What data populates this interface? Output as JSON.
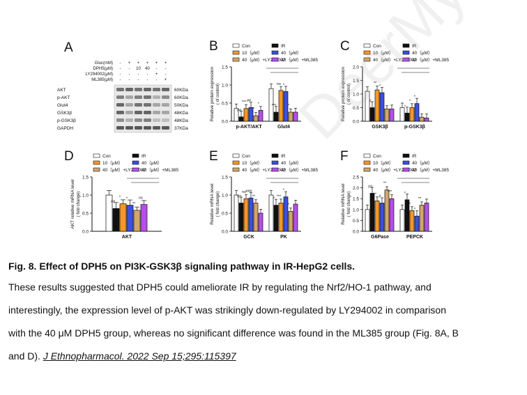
{
  "panels": {
    "A": "A",
    "B": "B",
    "C": "C",
    "D": "D",
    "E": "E",
    "F": "F"
  },
  "watermark": "DeerMy",
  "legend": {
    "con": "Con",
    "ir": "IR",
    "d10": "10（μM）",
    "d40": "40（μM）",
    "ly": "40（μM）+LY294002",
    "ml": "40（μM）+ML385"
  },
  "colors": {
    "con": "#ffffff",
    "ir": "#111111",
    "d10": "#f7962a",
    "d40": "#3b4fe0",
    "ly": "#d4a56a",
    "ml": "#b64fe8"
  },
  "blot": {
    "treatment_rows": [
      {
        "label": "Gluc(mM)",
        "values": [
          "-",
          "+",
          "+",
          "+",
          "+",
          "+"
        ]
      },
      {
        "label": "DPH5(μM)",
        "values": [
          "-",
          "-",
          "10",
          "40",
          "-",
          "-"
        ]
      },
      {
        "label": "LY294002(μM)",
        "values": [
          "-",
          "-",
          "-",
          "-",
          "+",
          "-"
        ]
      },
      {
        "label": "ML385(μM)",
        "values": [
          "-",
          "-",
          "-",
          "-",
          "-",
          "+"
        ]
      }
    ],
    "bands": [
      {
        "name": "AKT",
        "kda": "60KDa"
      },
      {
        "name": "p-AKT",
        "kda": "60KDa"
      },
      {
        "name": "Glut4",
        "kda": "50KDa"
      },
      {
        "name": "GSK3β",
        "kda": "48KDa"
      },
      {
        "name": "p-GSK3β",
        "kda": "48KDa"
      },
      {
        "name": "GAPDH",
        "kda": "37KDa"
      }
    ]
  },
  "chart_data": [
    {
      "id": "B",
      "type": "bar",
      "ylabel": "Relative protein expression",
      "ylabel2": "( of control)",
      "categories": [
        "p-AKT/AKT",
        "Glut4"
      ],
      "ylim": [
        0,
        1.5
      ],
      "yticks": [
        "0.0",
        "0.5",
        "1.0",
        "1.5"
      ],
      "series": [
        {
          "name": "Con",
          "values": [
            0.35,
            0.9
          ]
        },
        {
          "name": "IR",
          "values": [
            0.12,
            0.25
          ]
        },
        {
          "name": "10（μM）",
          "values": [
            0.35,
            0.85
          ]
        },
        {
          "name": "40（μM）",
          "values": [
            0.38,
            0.82
          ]
        },
        {
          "name": "40（μM）+LY294002",
          "values": [
            0.15,
            0.25
          ]
        },
        {
          "name": "40（μM）+ML385",
          "values": [
            0.3,
            0.25
          ]
        }
      ],
      "annotations": [
        "##",
        "***",
        "***",
        "ns",
        "##",
        "*",
        "*",
        "*",
        "*"
      ]
    },
    {
      "id": "C",
      "type": "bar",
      "ylabel": "Relative protein expression",
      "ylabel2": "( of control)",
      "categories": [
        "GSK3β",
        "p-GSK3β"
      ],
      "ylim": [
        0,
        2.0
      ],
      "yticks": [
        "0.0",
        "0.5",
        "1.0",
        "1.5",
        "2.0"
      ],
      "series": [
        {
          "name": "Con",
          "values": [
            1.1,
            0.5
          ]
        },
        {
          "name": "IR",
          "values": [
            0.5,
            0.3
          ]
        },
        {
          "name": "10（μM）",
          "values": [
            1.15,
            0.5
          ]
        },
        {
          "name": "40（μM）",
          "values": [
            1.05,
            0.65
          ]
        },
        {
          "name": "40（μM）+LY294002",
          "values": [
            0.45,
            0.15
          ]
        },
        {
          "name": "40（μM）+ML385",
          "values": [
            0.45,
            0.12
          ]
        }
      ],
      "annotations": [
        "#",
        "*",
        "**",
        "*",
        "*",
        "*"
      ]
    },
    {
      "id": "D",
      "type": "bar",
      "ylabel": "AKT relative mRNA level",
      "ylabel2": "( fold change)",
      "categories": [
        "AKT"
      ],
      "ylim": [
        0,
        1.5
      ],
      "yticks": [
        "0.0",
        "0.5",
        "1.0",
        "1.5"
      ],
      "series": [
        {
          "name": "Con",
          "values": [
            1.0
          ]
        },
        {
          "name": "IR",
          "values": [
            0.63
          ]
        },
        {
          "name": "10（μM）",
          "values": [
            0.76
          ]
        },
        {
          "name": "40（μM）",
          "values": [
            0.72
          ]
        },
        {
          "name": "40（μM）+LY294002",
          "values": [
            0.58
          ]
        },
        {
          "name": "40（μM）+ML385",
          "values": [
            0.74
          ]
        }
      ],
      "annotations": [
        "##",
        "*",
        "*",
        "**",
        "ns"
      ]
    },
    {
      "id": "E",
      "type": "bar",
      "ylabel": "Relative mRNA level",
      "ylabel2": "( fold change)",
      "categories": [
        "GCK",
        "PK"
      ],
      "ylim": [
        0,
        1.5
      ],
      "yticks": [
        "0.0",
        "0.5",
        "1.0",
        "1.5"
      ],
      "series": [
        {
          "name": "Con",
          "values": [
            1.0,
            1.0
          ]
        },
        {
          "name": "IR",
          "values": [
            0.78,
            0.72
          ]
        },
        {
          "name": "10（μM）",
          "values": [
            0.9,
            0.78
          ]
        },
        {
          "name": "40（μM）",
          "values": [
            0.92,
            0.95
          ]
        },
        {
          "name": "40（μM）+LY294002",
          "values": [
            0.78,
            0.55
          ]
        },
        {
          "name": "40（μM）+ML385",
          "values": [
            0.5,
            0.75
          ]
        }
      ],
      "annotations": [
        "##",
        "*",
        "ns",
        "***",
        "###",
        "*",
        "**",
        "*"
      ]
    },
    {
      "id": "F",
      "type": "bar",
      "ylabel": "Relative mRNA level",
      "ylabel2": "( fold change)",
      "categories": [
        "G6Pase",
        "PEPCK"
      ],
      "ylim": [
        0,
        2.5
      ],
      "yticks": [
        "0.0",
        "0.5",
        "1.0",
        "1.5",
        "2.0",
        "2.5"
      ],
      "series": [
        {
          "name": "Con",
          "values": [
            1.0,
            1.0
          ]
        },
        {
          "name": "IR",
          "values": [
            1.75,
            1.45
          ]
        },
        {
          "name": "10（μM）",
          "values": [
            1.4,
            0.95
          ]
        },
        {
          "name": "40（μM）",
          "values": [
            1.3,
            0.7
          ]
        },
        {
          "name": "40（μM）+LY294002",
          "values": [
            1.9,
            1.2
          ]
        },
        {
          "name": "40（μM）+ML385",
          "values": [
            1.5,
            1.3
          ]
        }
      ],
      "annotations": [
        "##",
        "*",
        "**",
        "*",
        "#",
        "*",
        "**",
        "**",
        "***"
      ]
    }
  ],
  "caption": "Fig. 8. Effect of DPH5 on PI3K-GSK3β signaling pathway in IR-HepG2 cells.",
  "body_lines": [
    "These results suggested that DPH5 could ameliorate IR by regulating the Nrf2/HO-1 pathway, and",
    "interestingly, the expression level of p-AKT was strikingly down-regulated by LY294002 in comparison",
    "with the 40 μM DPH5 group, whereas no significant difference was found in the ML385 group (Fig. 8A, B"
  ],
  "body_last_prefix": "and D).",
  "citation": "J Ethnopharmacol. 2022 Sep 15;295:115397"
}
